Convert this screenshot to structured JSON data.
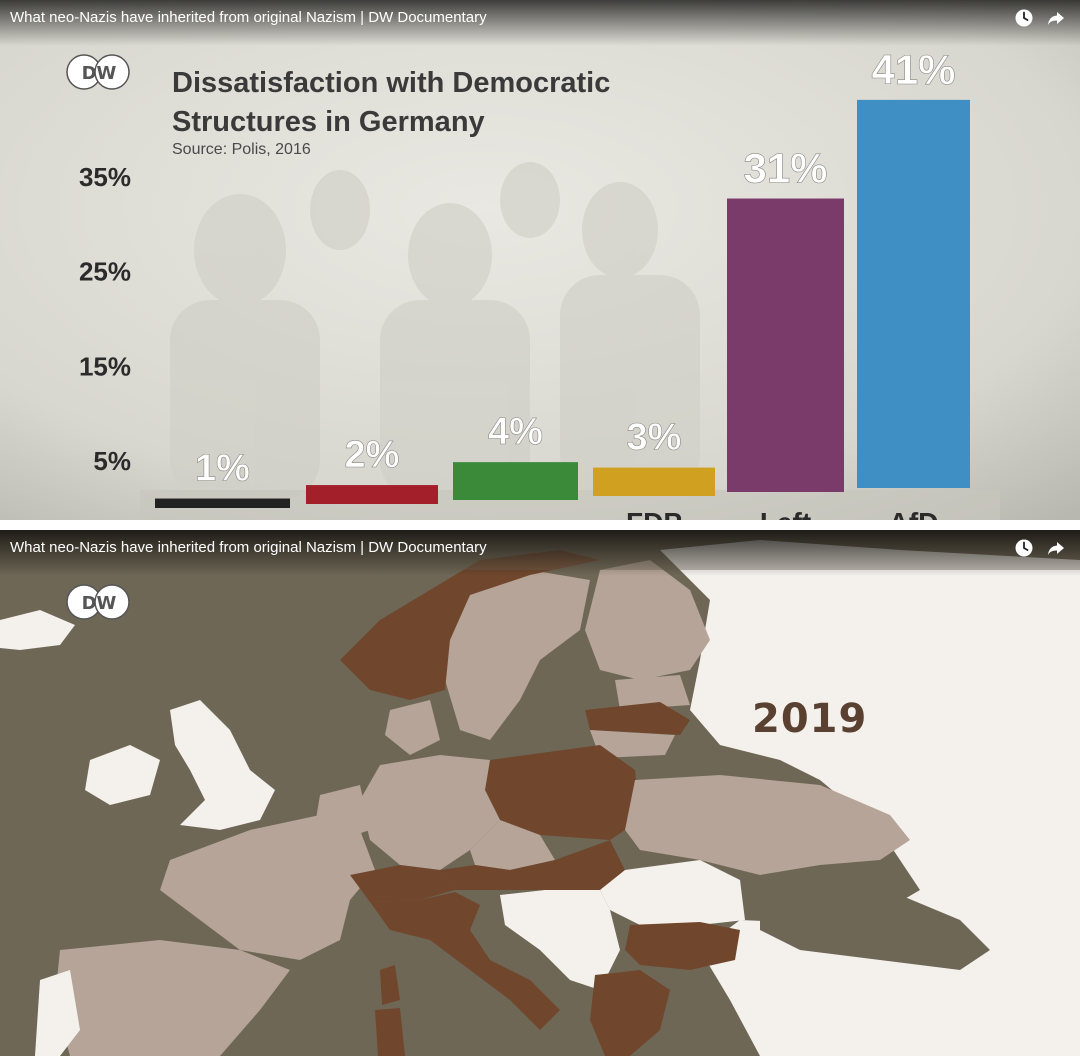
{
  "video": {
    "title": "What neo-Nazis have inherited from original Nazism | DW Documentary"
  },
  "icons": {
    "clock": "clock-icon",
    "share": "share-icon",
    "logo": "dw-logo"
  },
  "branding": {
    "logo_text": "DW"
  },
  "chart_data": {
    "type": "bar",
    "title": "Dissatisfaction with Democratic Structures in Germany",
    "title_line1": "Dissatisfaction with Democratic",
    "title_line2": "Structures in Germany",
    "source": "Source: Polis, 2016",
    "categories": [
      "",
      "",
      "",
      "FDP",
      "Left",
      "AfD"
    ],
    "values": [
      1,
      2,
      4,
      3,
      31,
      41
    ],
    "value_labels": [
      "1%",
      "2%",
      "4%",
      "3%",
      "31%",
      "41%"
    ],
    "colors": [
      "#222222",
      "#a3202b",
      "#3a8a3a",
      "#d0a020",
      "#7a3a6a",
      "#3f8fc4"
    ],
    "yticks": [
      {
        "value": 5,
        "label": "5%"
      },
      {
        "value": 15,
        "label": "15%"
      },
      {
        "value": 25,
        "label": "25%"
      },
      {
        "value": 35,
        "label": "35%"
      }
    ],
    "ylim": [
      0,
      45
    ],
    "xlabel": "",
    "ylabel": "",
    "grid": false,
    "legend": "none"
  },
  "map": {
    "year": "2019",
    "colors": {
      "sea": "#6e6756",
      "highlight": "#70472d",
      "neutral": "#b5a497",
      "other": "#f4f1ed"
    }
  }
}
